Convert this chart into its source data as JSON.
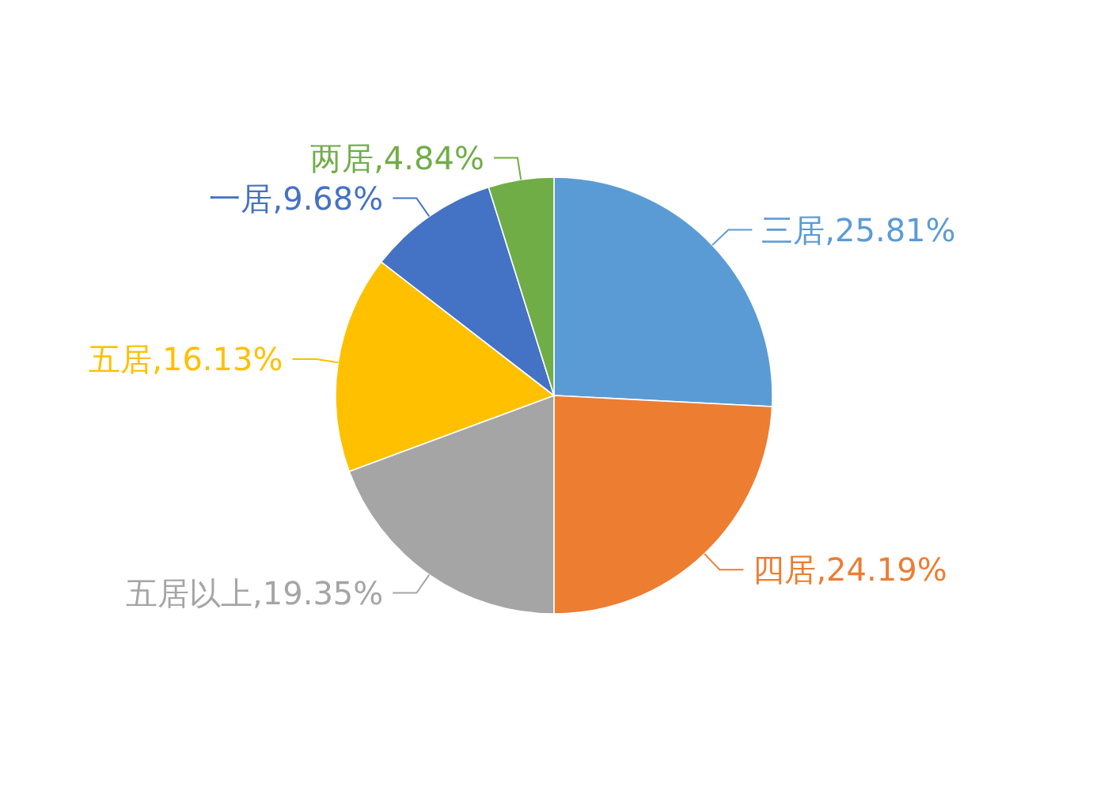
{
  "chart_data": {
    "type": "pie",
    "categories": [
      "三居",
      "四居",
      "五居以上",
      "五居",
      "一居",
      "两居"
    ],
    "values": [
      25.81,
      24.19,
      19.35,
      16.13,
      9.68,
      4.84
    ],
    "value_labels": [
      "25.81%",
      "24.19%",
      "19.35%",
      "16.13%",
      "9.68%",
      "4.84%"
    ],
    "colors": [
      "#5b9bd5",
      "#ed7d31",
      "#a5a5a5",
      "#ffc000",
      "#4472c4",
      "#70ad47"
    ],
    "legend": false
  }
}
